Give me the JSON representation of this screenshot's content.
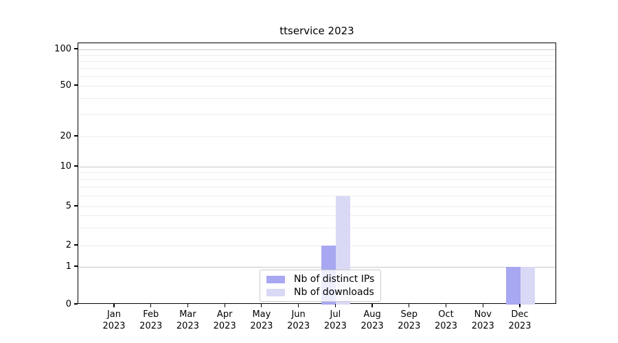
{
  "chart_data": {
    "type": "bar",
    "title": "ttservice 2023",
    "categories": [
      "Jan",
      "Feb",
      "Mar",
      "Apr",
      "May",
      "Jun",
      "Jul",
      "Aug",
      "Sep",
      "Oct",
      "Nov",
      "Dec"
    ],
    "x_tick_year": "2023",
    "series": [
      {
        "name": "Nb of distinct IPs",
        "color": "#a7a7f2",
        "values": [
          0,
          0,
          0,
          0,
          0,
          0,
          2,
          0,
          0,
          0,
          0,
          1
        ]
      },
      {
        "name": "Nb of downloads",
        "color": "#d9d9f5",
        "values": [
          0,
          0,
          0,
          0,
          0,
          0,
          6,
          0,
          0,
          0,
          0,
          1
        ]
      }
    ],
    "yscale": "symlog",
    "yticks": [
      0,
      1,
      2,
      5,
      10,
      20,
      50,
      100
    ],
    "ylim": [
      0,
      112
    ],
    "xlabel": "",
    "ylabel": "",
    "grid": "both",
    "legend_position": "lower center",
    "colors": {
      "axes": "#000000",
      "grid_major": "#c9c9c9",
      "grid_minor": "#ececec",
      "background": "#ffffff"
    }
  }
}
